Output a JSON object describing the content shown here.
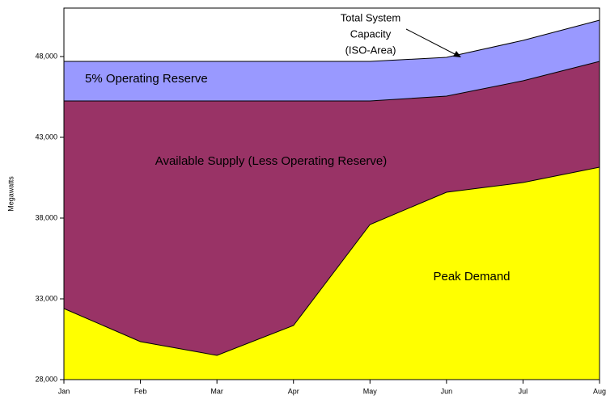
{
  "chart_data": {
    "type": "area",
    "categories": [
      "Jan",
      "Feb",
      "Mar",
      "Apr",
      "May",
      "Jun",
      "Jul",
      "Aug"
    ],
    "series": [
      {
        "name": "5% Operating Reserve",
        "color": "#9999ff",
        "values": [
          47700,
          47700,
          47700,
          47700,
          47700,
          47950,
          49000,
          50250
        ]
      },
      {
        "name": "Available Supply (Less Operating Reserve)",
        "color": "#993366",
        "values": [
          45250,
          45250,
          45250,
          45250,
          45250,
          45550,
          46500,
          47700
        ]
      },
      {
        "name": "Peak Demand",
        "color": "#ffff00",
        "values": [
          32400,
          30350,
          29500,
          31350,
          37600,
          39600,
          40200,
          41150
        ]
      }
    ],
    "ylabel": "Megawatts",
    "annotation": [
      "Total System",
      "Capacity",
      "(ISO-Area)"
    ],
    "ylim": [
      28000,
      51000
    ],
    "yticks": [
      {
        "value": 28000,
        "label": "28,000"
      },
      {
        "value": 33000,
        "label": "33,000"
      },
      {
        "value": 38000,
        "label": "38,000"
      },
      {
        "value": 43000,
        "label": "43,000"
      },
      {
        "value": 48000,
        "label": "48,000"
      }
    ]
  }
}
